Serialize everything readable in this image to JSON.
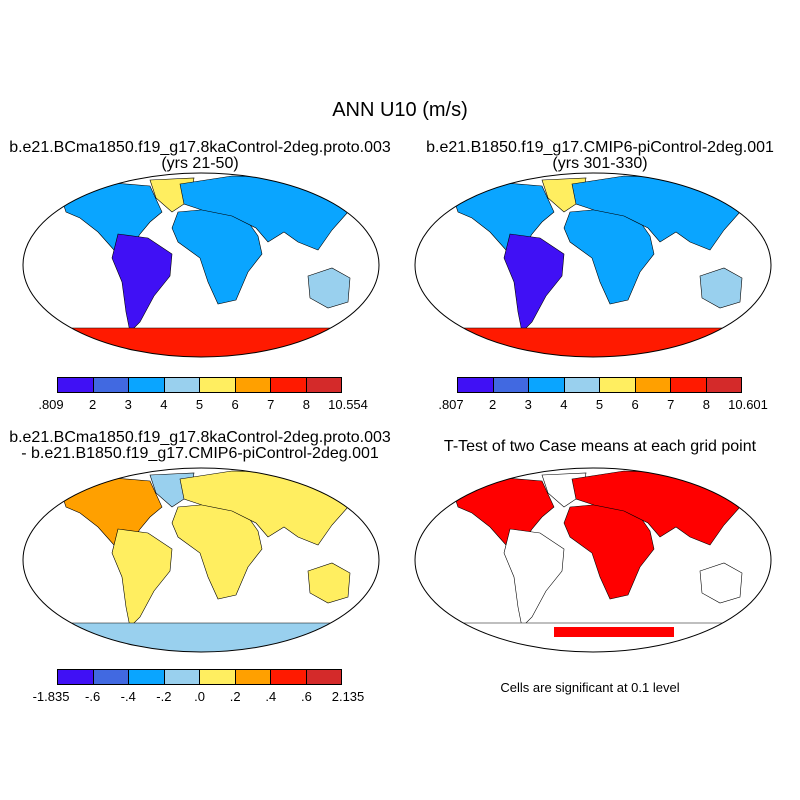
{
  "figure": {
    "title": "ANN U10 (m/s)",
    "palette": [
      "#4010f5",
      "#4169e1",
      "#0aa5ff",
      "#99d0ee",
      "#ffee60",
      "#ffa000",
      "#ff1a00",
      "#d42a2a"
    ]
  },
  "panels": [
    {
      "title_line1": "b.e21.BCma1850.f19_g17.8kaControl-2deg.proto.003",
      "title_line2": "(yrs 21-50)",
      "colorbar_labels": [
        ".809",
        "2",
        "3",
        "4",
        "5",
        "6",
        "7",
        "8",
        "10.554"
      ],
      "fills": {
        "na": "#0aa5ff",
        "sa": "#4010f5",
        "af": "#0aa5ff",
        "eu": "#0aa5ff",
        "au": "#99d0ee",
        "gr": "#ffee60",
        "an": "#ff1a00"
      }
    },
    {
      "title_line1": "b.e21.B1850.f19_g17.CMIP6-piControl-2deg.001",
      "title_line2": "(yrs 301-330)",
      "colorbar_labels": [
        ".807",
        "2",
        "3",
        "4",
        "5",
        "6",
        "7",
        "8",
        "10.601"
      ],
      "fills": {
        "na": "#0aa5ff",
        "sa": "#4010f5",
        "af": "#0aa5ff",
        "eu": "#0aa5ff",
        "au": "#99d0ee",
        "gr": "#ffee60",
        "an": "#ff1a00"
      }
    },
    {
      "title_line1": "b.e21.BCma1850.f19_g17.8kaControl-2deg.proto.003",
      "title_line2": "- b.e21.B1850.f19_g17.CMIP6-piControl-2deg.001",
      "colorbar_labels": [
        "-1.835",
        "-.6",
        "-.4",
        "-.2",
        ".0",
        ".2",
        ".4",
        ".6",
        "2.135"
      ],
      "fills": {
        "na": "#ffa000",
        "sa": "#ffee60",
        "af": "#ffee60",
        "eu": "#ffee60",
        "au": "#ffee60",
        "gr": "#99d0ee",
        "an": "#99d0ee"
      }
    },
    {
      "title_line1": "T-Test of two Case means at each grid point",
      "title_line2": "",
      "note": "Cells are significant at 0.1 level",
      "fills": {
        "na": "#ff0000",
        "sa": "#ffffff",
        "af": "#ff0000",
        "eu": "#ff0000",
        "au": "#ffffff",
        "gr": "#ffffff",
        "an": "#ffffff"
      }
    }
  ]
}
